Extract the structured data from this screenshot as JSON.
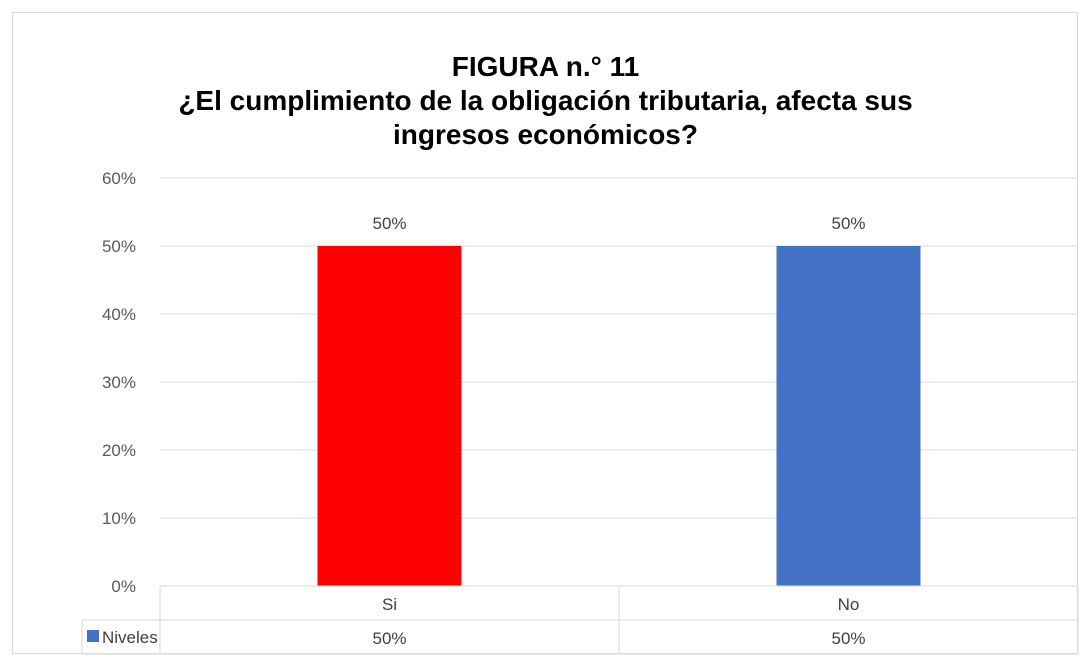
{
  "chart_data": {
    "type": "bar",
    "title_line1": "FIGURA n.° 11",
    "title_line2": "¿El cumplimiento de la obligación tributaria, afecta sus",
    "title_line3": "ingresos económicos?",
    "categories": [
      "Si",
      "No"
    ],
    "series": [
      {
        "name": "Niveles",
        "values": [
          50,
          50
        ],
        "data_labels": [
          "50%",
          "50%"
        ],
        "colors": [
          "#ff0000",
          "#4472c4"
        ]
      }
    ],
    "ylim": [
      0,
      60
    ],
    "yticks": [
      0,
      10,
      20,
      30,
      40,
      50,
      60
    ],
    "ytick_labels": [
      "0%",
      "10%",
      "20%",
      "30%",
      "40%",
      "50%",
      "60%"
    ],
    "legend_color": "#4472c4",
    "grid": true,
    "data_table": true
  }
}
